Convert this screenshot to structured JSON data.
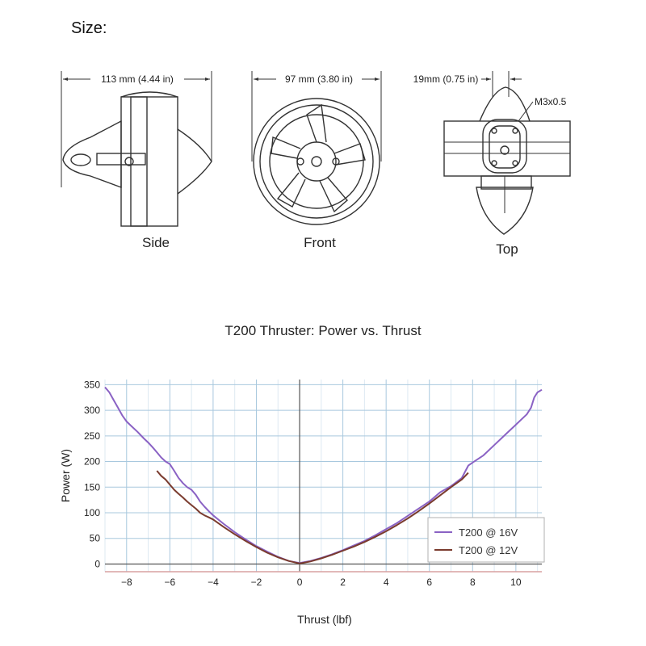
{
  "header": {
    "size_label": "Size:"
  },
  "drawings": {
    "side": {
      "dimension": "113 mm (4.44 in)",
      "label": "Side"
    },
    "front": {
      "dimension": "97 mm (3.80 in)",
      "label": "Front"
    },
    "top": {
      "dimension": "19mm (0.75 in)",
      "label": "Top",
      "callout": "M3x0.5"
    }
  },
  "colors": {
    "series_16v": "#8a62c4",
    "series_12v": "#7a3b2e",
    "grid": "#a8c8de",
    "zero_line": "#555555",
    "axis_bottom": "#d9a0a0"
  },
  "chart_data": {
    "type": "line",
    "title": "T200 Thruster: Power vs. Thrust",
    "xlabel": "Thrust (lbf)",
    "ylabel": "Power (W)",
    "xlim": [
      -9,
      11.2
    ],
    "ylim": [
      -15,
      360
    ],
    "xticks": [
      -8,
      -6,
      -4,
      -2,
      0,
      2,
      4,
      6,
      8,
      10
    ],
    "yticks": [
      0,
      50,
      100,
      150,
      200,
      250,
      300,
      350
    ],
    "grid": true,
    "legend_position": "bottom-right",
    "series": [
      {
        "name": "T200 @ 16V",
        "color": "#8a62c4",
        "points": [
          [
            -9,
            345
          ],
          [
            -8.8,
            335
          ],
          [
            -8.6,
            320
          ],
          [
            -8.4,
            305
          ],
          [
            -8.2,
            290
          ],
          [
            -8,
            278
          ],
          [
            -7.8,
            270
          ],
          [
            -7.5,
            258
          ],
          [
            -7.2,
            245
          ],
          [
            -7,
            237
          ],
          [
            -6.8,
            228
          ],
          [
            -6.6,
            218
          ],
          [
            -6.4,
            208
          ],
          [
            -6.2,
            200
          ],
          [
            -6,
            195
          ],
          [
            -5.8,
            182
          ],
          [
            -5.6,
            168
          ],
          [
            -5.4,
            158
          ],
          [
            -5.2,
            150
          ],
          [
            -5,
            145
          ],
          [
            -4.8,
            135
          ],
          [
            -4.6,
            122
          ],
          [
            -4.4,
            112
          ],
          [
            -4.2,
            103
          ],
          [
            -4,
            95
          ],
          [
            -3.5,
            78
          ],
          [
            -3,
            62
          ],
          [
            -2.5,
            48
          ],
          [
            -2,
            35
          ],
          [
            -1.5,
            24
          ],
          [
            -1,
            14
          ],
          [
            -0.5,
            6
          ],
          [
            0,
            2
          ],
          [
            0.5,
            6
          ],
          [
            1,
            12
          ],
          [
            1.5,
            19
          ],
          [
            2,
            27
          ],
          [
            2.5,
            36
          ],
          [
            3,
            45
          ],
          [
            3.5,
            56
          ],
          [
            4,
            68
          ],
          [
            4.5,
            80
          ],
          [
            5,
            94
          ],
          [
            5.5,
            108
          ],
          [
            6,
            122
          ],
          [
            6.5,
            140
          ],
          [
            7,
            152
          ],
          [
            7.5,
            168
          ],
          [
            7.8,
            192
          ],
          [
            8,
            198
          ],
          [
            8.5,
            212
          ],
          [
            9,
            232
          ],
          [
            9.5,
            252
          ],
          [
            10,
            272
          ],
          [
            10.5,
            292
          ],
          [
            10.7,
            305
          ],
          [
            10.85,
            325
          ],
          [
            11,
            335
          ],
          [
            11.2,
            340
          ]
        ]
      },
      {
        "name": "T200 @ 12V",
        "color": "#7a3b2e",
        "points": [
          [
            -6.6,
            182
          ],
          [
            -6.4,
            172
          ],
          [
            -6.2,
            165
          ],
          [
            -6,
            155
          ],
          [
            -5.8,
            145
          ],
          [
            -5.6,
            137
          ],
          [
            -5.4,
            130
          ],
          [
            -5.2,
            122
          ],
          [
            -5,
            115
          ],
          [
            -4.8,
            108
          ],
          [
            -4.6,
            100
          ],
          [
            -4.4,
            95
          ],
          [
            -4.2,
            91
          ],
          [
            -4,
            87
          ],
          [
            -3.5,
            72
          ],
          [
            -3,
            58
          ],
          [
            -2.5,
            45
          ],
          [
            -2,
            33
          ],
          [
            -1.5,
            22
          ],
          [
            -1,
            13
          ],
          [
            -0.5,
            6
          ],
          [
            0,
            1
          ],
          [
            0.5,
            5
          ],
          [
            1,
            11
          ],
          [
            1.5,
            18
          ],
          [
            2,
            26
          ],
          [
            2.5,
            34
          ],
          [
            3,
            43
          ],
          [
            3.5,
            53
          ],
          [
            4,
            64
          ],
          [
            4.5,
            76
          ],
          [
            5,
            89
          ],
          [
            5.5,
            103
          ],
          [
            6,
            118
          ],
          [
            6.5,
            134
          ],
          [
            7,
            150
          ],
          [
            7.5,
            165
          ],
          [
            7.8,
            178
          ]
        ]
      }
    ]
  }
}
